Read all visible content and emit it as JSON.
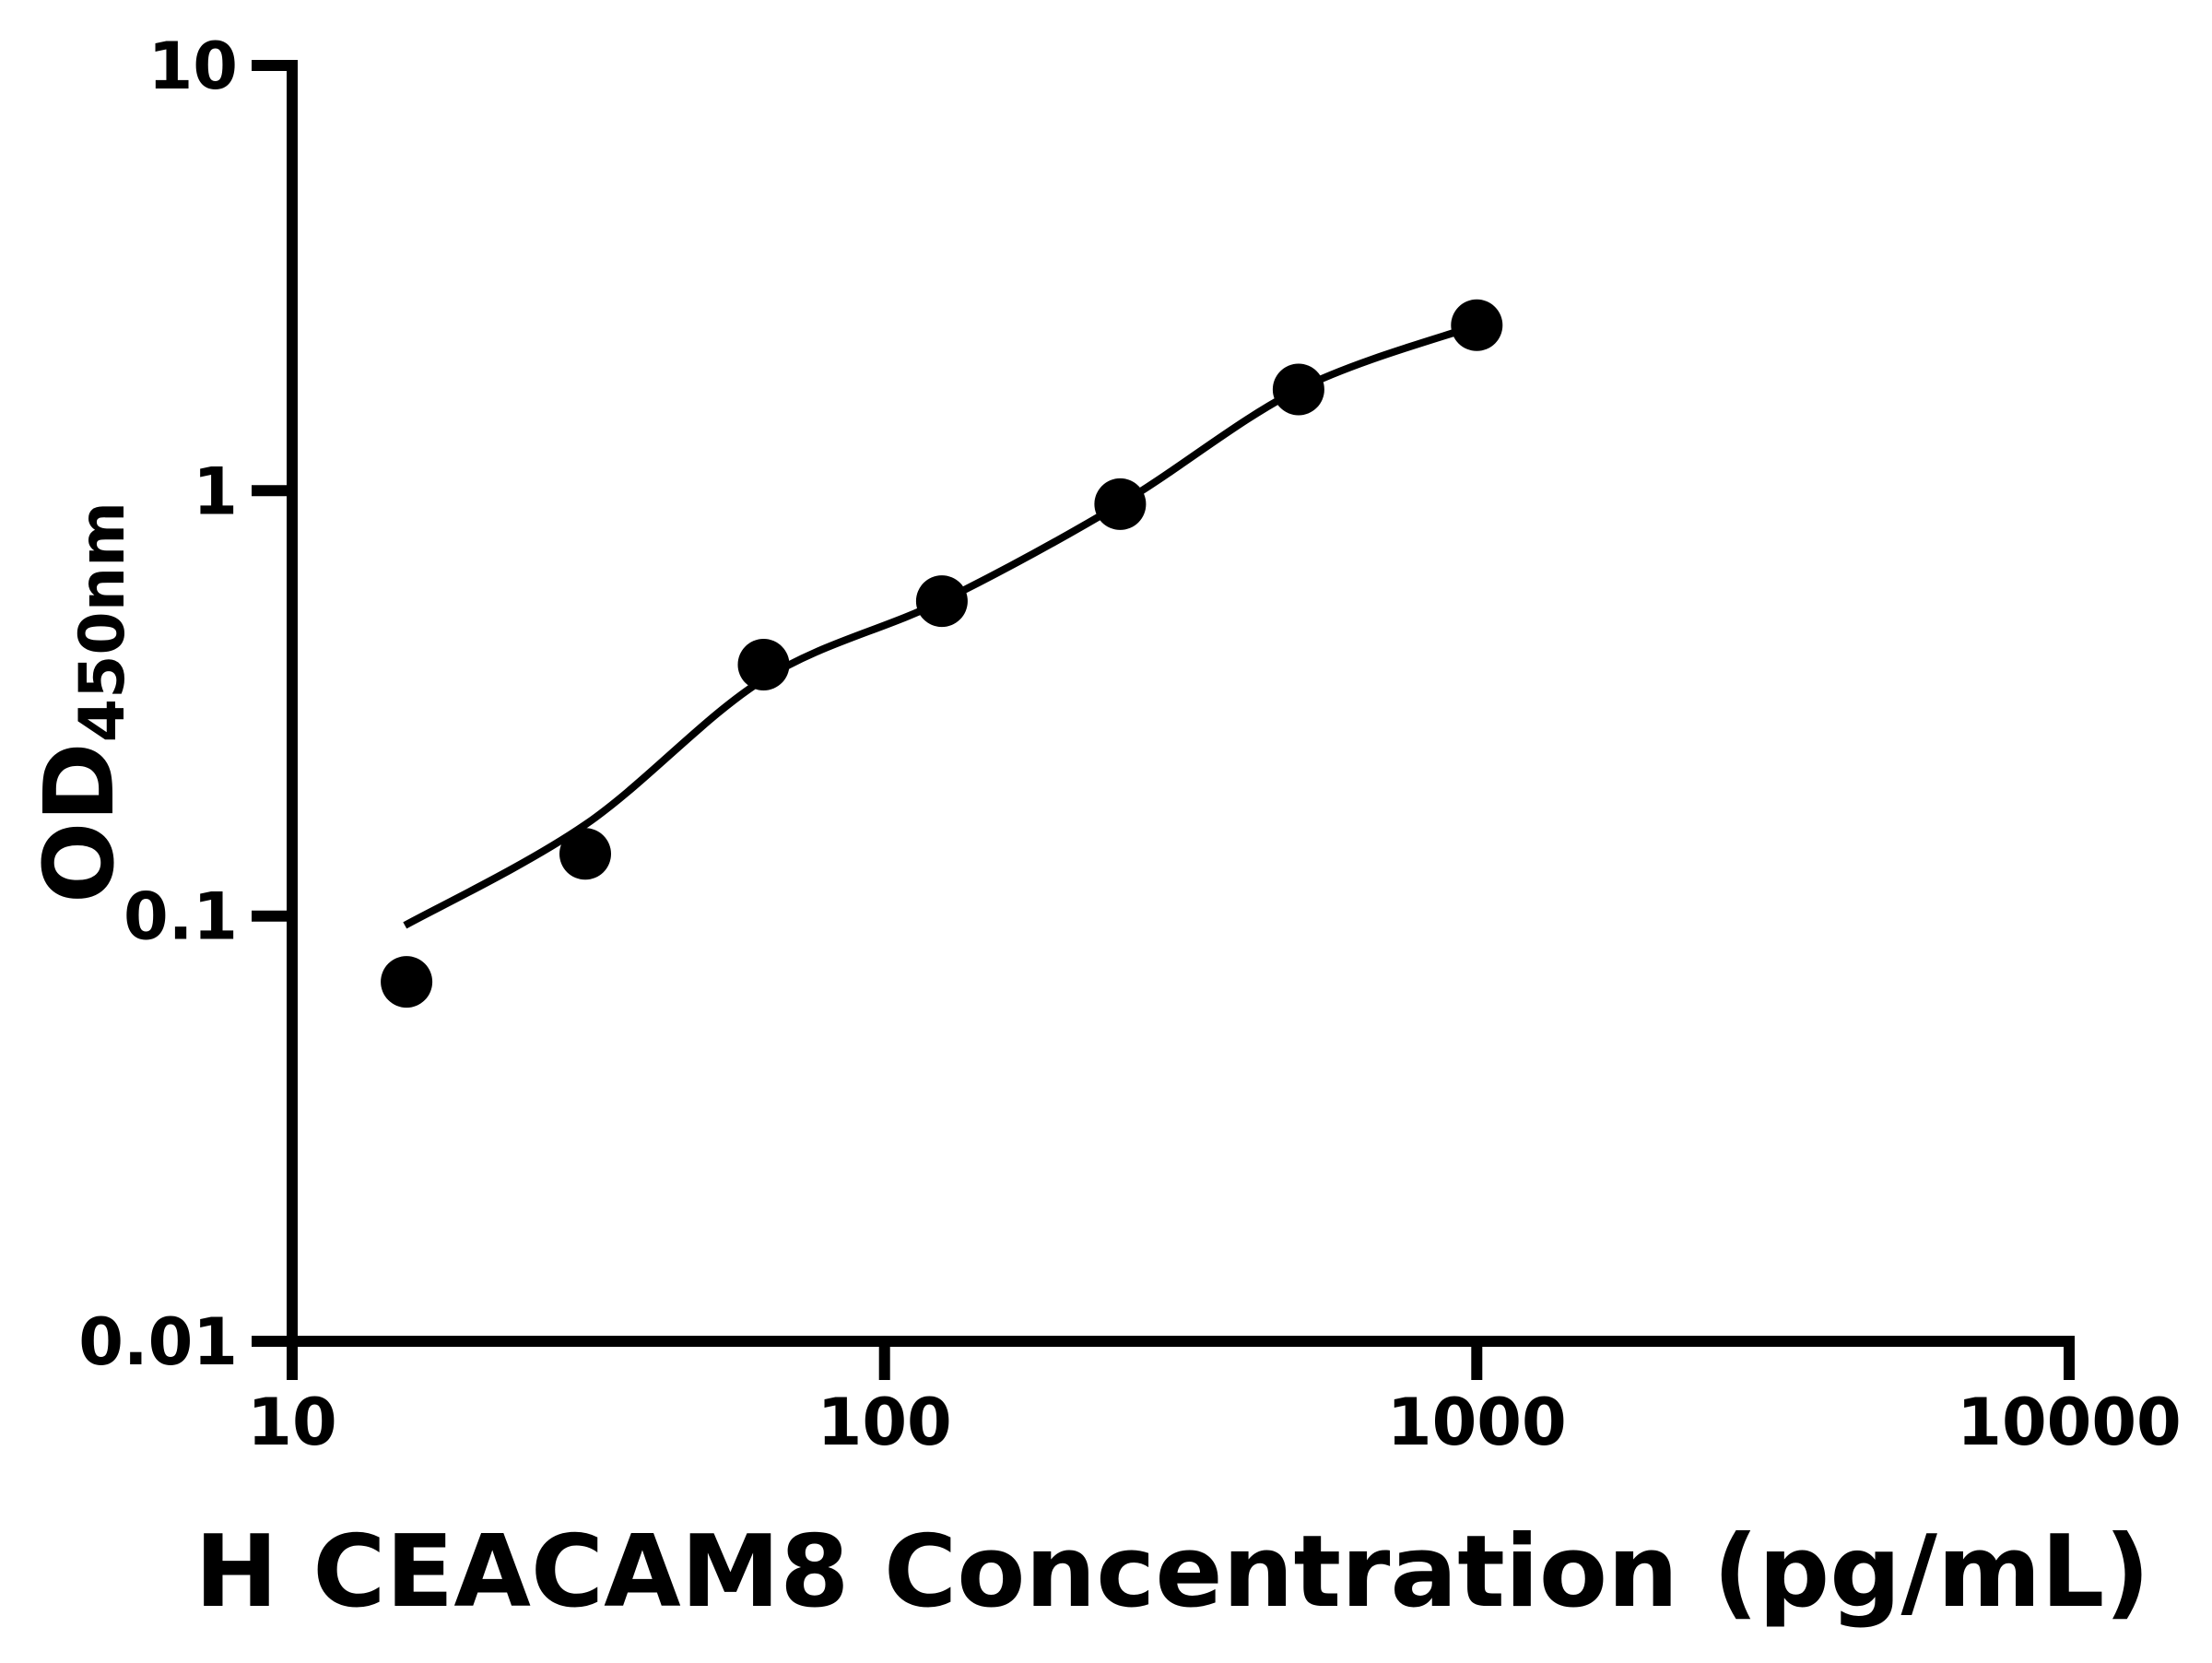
{
  "figure": {
    "background_color": "#ffffff",
    "ink_color": "#000000"
  },
  "chart_data": {
    "type": "scatter",
    "title": "",
    "xlabel": "H CEACAM8 Concentration (pg/mL)",
    "ylabel_main": "OD",
    "ylabel_sub": "450nm",
    "x_scale": "log",
    "y_scale": "log",
    "xlim": [
      10,
      10000
    ],
    "ylim": [
      0.01,
      10
    ],
    "x_ticks": [
      10,
      100,
      1000,
      10000
    ],
    "x_tick_labels": [
      "10",
      "100",
      "1000",
      "10000"
    ],
    "y_ticks": [
      10,
      1,
      0.1,
      0.01
    ],
    "y_tick_labels": [
      "10",
      "1",
      "0.1",
      "0.01"
    ],
    "grid": false,
    "legend": false,
    "marker_color": "#000000",
    "line_color": "#000000",
    "series": [
      {
        "name": "standard-points",
        "kind": "scatter",
        "points": [
          {
            "x": 15.6,
            "y": 0.07
          },
          {
            "x": 31.25,
            "y": 0.14
          },
          {
            "x": 62.5,
            "y": 0.39
          },
          {
            "x": 125,
            "y": 0.55
          },
          {
            "x": 250,
            "y": 0.93
          },
          {
            "x": 500,
            "y": 1.73
          },
          {
            "x": 1000,
            "y": 2.45
          }
        ]
      },
      {
        "name": "fit-curve",
        "kind": "line",
        "points": [
          {
            "x": 15.5,
            "y": 0.095
          },
          {
            "x": 31.25,
            "y": 0.164
          },
          {
            "x": 62.5,
            "y": 0.36
          },
          {
            "x": 125,
            "y": 0.55
          },
          {
            "x": 250,
            "y": 0.93
          },
          {
            "x": 500,
            "y": 1.73
          },
          {
            "x": 1000,
            "y": 2.45
          }
        ]
      }
    ]
  }
}
